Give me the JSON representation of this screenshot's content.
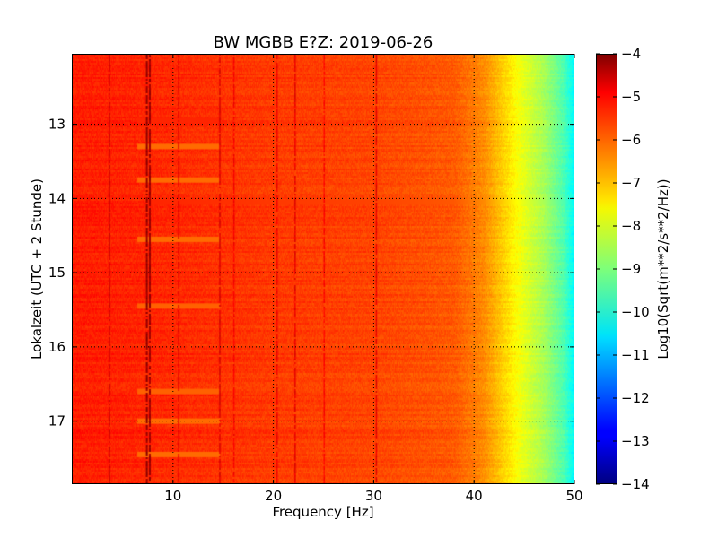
{
  "chart_data": {
    "type": "heatmap",
    "title": "BW MGBB E?Z: 2019-06-26",
    "xlabel": "Frequency [Hz]",
    "ylabel": "Lokalzeit (UTC + 2 Stunde)",
    "colorbar_label": "Log10(Sqrt(m**2/s**2/Hz))",
    "colormap": "jet",
    "xlim": [
      0,
      50
    ],
    "ylim": [
      12.05,
      17.85
    ],
    "y_inverted": true,
    "clim": [
      -14,
      -4
    ],
    "grid": true,
    "x_ticks": [
      10,
      20,
      30,
      40,
      50
    ],
    "y_ticks": [
      13,
      14,
      15,
      16,
      17
    ],
    "colorbar_ticks": [
      -4,
      -5,
      -6,
      -7,
      -8,
      -9,
      -10,
      -11,
      -12,
      -13,
      -14
    ],
    "base_level_by_frequency": [
      {
        "hz": 0,
        "value": -5.5
      },
      {
        "hz": 8,
        "value": -5.6
      },
      {
        "hz": 20,
        "value": -5.8
      },
      {
        "hz": 30,
        "value": -5.9
      },
      {
        "hz": 38,
        "value": -6.1
      },
      {
        "hz": 41,
        "value": -6.6
      },
      {
        "hz": 43,
        "value": -7.3
      },
      {
        "hz": 45,
        "value": -8.0
      },
      {
        "hz": 47,
        "value": -8.6
      },
      {
        "hz": 49,
        "value": -9.5
      },
      {
        "hz": 50,
        "value": -10.3
      }
    ],
    "vertical_lines_hz": [
      {
        "hz": 3.6,
        "value": -4.8
      },
      {
        "hz": 7.3,
        "value": -4.2
      },
      {
        "hz": 7.6,
        "value": -4.3
      },
      {
        "hz": 10.5,
        "value": -5.0
      },
      {
        "hz": 14.6,
        "value": -4.9
      },
      {
        "hz": 16.0,
        "value": -5.2
      },
      {
        "hz": 20.3,
        "value": -5.1
      },
      {
        "hz": 22.1,
        "value": -5.0
      },
      {
        "hz": 25.0,
        "value": -5.3
      },
      {
        "hz": 30.2,
        "value": -5.0
      }
    ],
    "horizontal_bands_hour": [
      {
        "hour": 12.95,
        "value": -5.6
      },
      {
        "hour": 13.3,
        "value": -6.3
      },
      {
        "hour": 13.75,
        "value": -6.3
      },
      {
        "hour": 14.05,
        "value": -5.0
      },
      {
        "hour": 14.55,
        "value": -6.3
      },
      {
        "hour": 15.45,
        "value": -6.2
      },
      {
        "hour": 16.6,
        "value": -6.2
      },
      {
        "hour": 17.0,
        "value": -6.3
      },
      {
        "hour": 17.45,
        "value": -6.3
      }
    ]
  }
}
